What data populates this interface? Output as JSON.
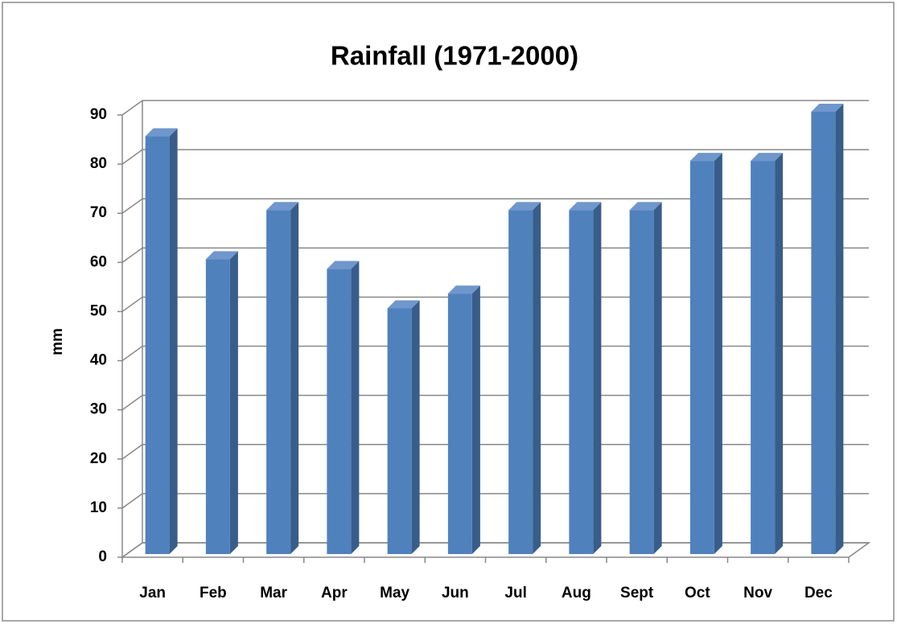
{
  "chart_data": {
    "type": "bar3d",
    "title": "Rainfall (1971-2000)",
    "y_label": "mm",
    "categories": [
      "Jan",
      "Feb",
      "Mar",
      "Apr",
      "May",
      "Jun",
      "Jul",
      "Aug",
      "Sept",
      "Oct",
      "Nov",
      "Dec"
    ],
    "values": [
      85,
      60,
      70,
      58,
      50,
      53,
      70,
      70,
      70,
      80,
      80,
      90
    ],
    "color": "#4f81bd",
    "ylim": [
      0,
      90
    ],
    "yticks": [
      0,
      10,
      20,
      30,
      40,
      50,
      60,
      70,
      80,
      90
    ],
    "grid": true
  }
}
